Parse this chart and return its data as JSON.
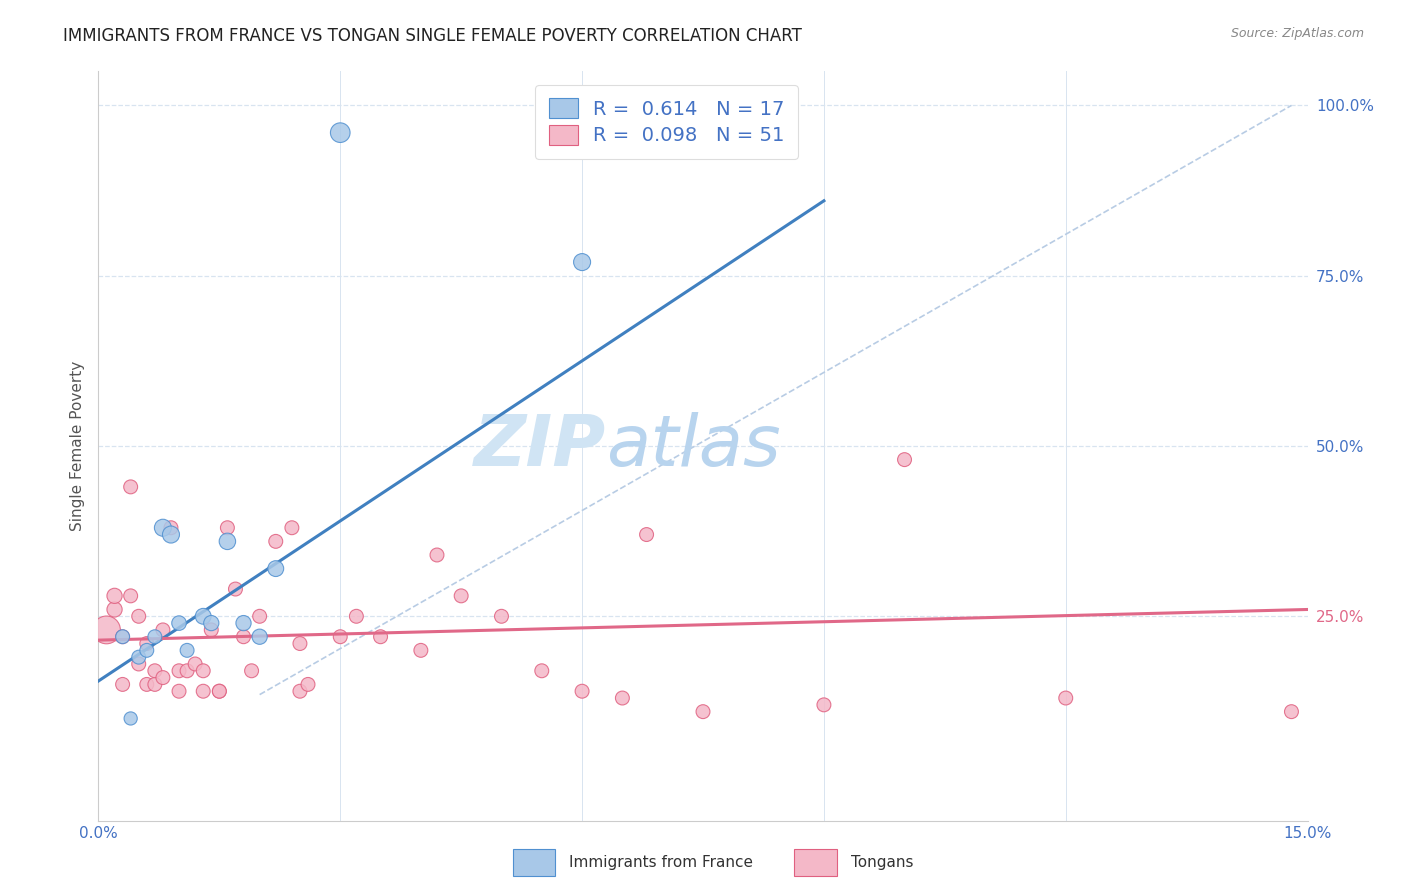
{
  "title": "IMMIGRANTS FROM FRANCE VS TONGAN SINGLE FEMALE POVERTY CORRELATION CHART",
  "source": "Source: ZipAtlas.com",
  "ylabel": "Single Female Poverty",
  "legend_blue_r": "0.614",
  "legend_blue_n": "17",
  "legend_pink_r": "0.098",
  "legend_pink_n": "51",
  "legend_label_blue": "Immigrants from France",
  "legend_label_pink": "Tongans",
  "blue_color": "#a8c8e8",
  "pink_color": "#f4b8c8",
  "blue_edge_color": "#5090d0",
  "pink_edge_color": "#e06080",
  "blue_line_color": "#4080c0",
  "pink_line_color": "#e06888",
  "diag_line_color": "#b8cce4",
  "grid_color": "#d8e4f0",
  "text_color": "#4472c4",
  "title_color": "#222222",
  "source_color": "#888888",
  "background_color": "#ffffff",
  "xmin": 0.0,
  "xmax": 0.15,
  "ymin": -0.05,
  "ymax": 1.05,
  "yticks": [
    0.0,
    0.25,
    0.5,
    0.75,
    1.0
  ],
  "xticks": [
    0.0,
    0.03,
    0.06,
    0.09,
    0.12,
    0.15
  ],
  "blue_scatter_x": [
    0.03,
    0.003,
    0.007,
    0.008,
    0.009,
    0.011,
    0.013,
    0.014,
    0.016,
    0.018,
    0.02,
    0.022,
    0.06,
    0.005,
    0.006,
    0.01,
    0.004
  ],
  "blue_scatter_y": [
    0.96,
    0.22,
    0.22,
    0.38,
    0.37,
    0.2,
    0.25,
    0.24,
    0.36,
    0.24,
    0.22,
    0.32,
    0.77,
    0.19,
    0.2,
    0.24,
    0.1
  ],
  "blue_scatter_size": [
    200,
    100,
    100,
    150,
    150,
    100,
    130,
    120,
    140,
    120,
    120,
    130,
    150,
    100,
    100,
    110,
    90
  ],
  "pink_scatter_x": [
    0.001,
    0.002,
    0.002,
    0.003,
    0.003,
    0.004,
    0.004,
    0.005,
    0.005,
    0.006,
    0.006,
    0.007,
    0.007,
    0.008,
    0.008,
    0.009,
    0.01,
    0.01,
    0.011,
    0.012,
    0.013,
    0.013,
    0.014,
    0.015,
    0.015,
    0.016,
    0.017,
    0.018,
    0.019,
    0.02,
    0.022,
    0.024,
    0.025,
    0.025,
    0.026,
    0.03,
    0.032,
    0.035,
    0.04,
    0.042,
    0.045,
    0.05,
    0.055,
    0.06,
    0.065,
    0.068,
    0.075,
    0.09,
    0.1,
    0.12,
    0.148
  ],
  "pink_scatter_y": [
    0.23,
    0.26,
    0.28,
    0.15,
    0.22,
    0.28,
    0.44,
    0.18,
    0.25,
    0.15,
    0.21,
    0.15,
    0.17,
    0.16,
    0.23,
    0.38,
    0.14,
    0.17,
    0.17,
    0.18,
    0.14,
    0.17,
    0.23,
    0.14,
    0.14,
    0.38,
    0.29,
    0.22,
    0.17,
    0.25,
    0.36,
    0.38,
    0.21,
    0.14,
    0.15,
    0.22,
    0.25,
    0.22,
    0.2,
    0.34,
    0.28,
    0.25,
    0.17,
    0.14,
    0.13,
    0.37,
    0.11,
    0.12,
    0.48,
    0.13,
    0.11
  ],
  "pink_scatter_size": [
    400,
    120,
    120,
    100,
    100,
    100,
    100,
    100,
    100,
    100,
    100,
    100,
    100,
    100,
    100,
    100,
    100,
    100,
    100,
    100,
    100,
    100,
    100,
    100,
    100,
    100,
    100,
    100,
    100,
    100,
    100,
    100,
    100,
    100,
    100,
    100,
    100,
    100,
    100,
    100,
    100,
    100,
    100,
    100,
    100,
    100,
    100,
    100,
    100,
    100,
    100
  ],
  "blue_trendline_x": [
    0.0,
    0.09
  ],
  "blue_trendline_y": [
    0.155,
    0.86
  ],
  "pink_trendline_x": [
    0.0,
    0.15
  ],
  "pink_trendline_y": [
    0.215,
    0.26
  ],
  "diag_line_x": [
    0.02,
    0.148
  ],
  "diag_line_y": [
    0.135,
    1.0
  ]
}
